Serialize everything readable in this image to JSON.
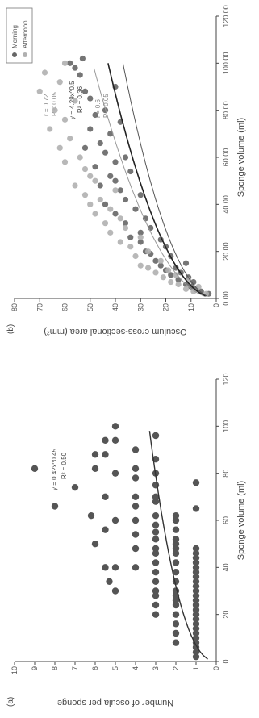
{
  "chart_data": [
    {
      "type": "scatter",
      "panel_label": "(a)",
      "xlabel": "Sponge volume (ml)",
      "ylabel": "Number of oscula per sponge",
      "xlim": [
        0,
        120
      ],
      "ylim": [
        0,
        10
      ],
      "x_ticks": [
        "0",
        "20",
        "40",
        "60",
        "80",
        "100",
        "120"
      ],
      "y_ticks": [
        "0",
        "1",
        "2",
        "3",
        "4",
        "5",
        "6",
        "7",
        "8",
        "9",
        "10"
      ],
      "grid": false,
      "colors": {
        "points": "#555555",
        "fit": "#333333"
      },
      "fit": {
        "equation": "y = 0.42x^0.45",
        "r2": "R² = 0.50",
        "a": 0.42,
        "b": 0.45,
        "x_range": [
          1,
          98
        ]
      },
      "series": [
        {
          "points": [
            [
              2,
              1
            ],
            [
              4,
              1
            ],
            [
              6,
              1
            ],
            [
              8,
              1
            ],
            [
              10,
              1
            ],
            [
              12,
              1
            ],
            [
              14,
              1
            ],
            [
              16,
              1
            ],
            [
              18,
              1
            ],
            [
              20,
              1
            ],
            [
              22,
              1
            ],
            [
              24,
              1
            ],
            [
              26,
              1
            ],
            [
              28,
              1
            ],
            [
              30,
              1
            ],
            [
              32,
              1
            ],
            [
              34,
              1
            ],
            [
              36,
              1
            ],
            [
              38,
              1
            ],
            [
              40,
              1
            ],
            [
              42,
              1
            ],
            [
              44,
              1
            ],
            [
              46,
              1
            ],
            [
              48,
              1
            ],
            [
              65,
              1
            ],
            [
              76,
              1
            ],
            [
              8,
              2
            ],
            [
              12,
              2
            ],
            [
              16,
              2
            ],
            [
              20,
              2
            ],
            [
              24,
              2
            ],
            [
              26,
              2
            ],
            [
              28,
              2
            ],
            [
              30,
              2
            ],
            [
              34,
              2
            ],
            [
              38,
              2
            ],
            [
              42,
              2
            ],
            [
              46,
              2
            ],
            [
              48,
              2
            ],
            [
              50,
              2
            ],
            [
              52,
              2
            ],
            [
              56,
              2
            ],
            [
              60,
              2
            ],
            [
              62,
              2
            ],
            [
              20,
              3
            ],
            [
              24,
              3
            ],
            [
              28,
              3
            ],
            [
              30,
              3
            ],
            [
              34,
              3
            ],
            [
              38,
              3
            ],
            [
              42,
              3
            ],
            [
              46,
              3
            ],
            [
              48,
              3
            ],
            [
              52,
              3
            ],
            [
              55,
              3
            ],
            [
              58,
              3
            ],
            [
              62,
              3
            ],
            [
              68,
              3
            ],
            [
              70,
              3
            ],
            [
              75,
              3
            ],
            [
              80,
              3
            ],
            [
              86,
              3
            ],
            [
              96,
              3
            ],
            [
              40,
              4
            ],
            [
              48,
              4
            ],
            [
              54,
              4
            ],
            [
              60,
              4
            ],
            [
              66,
              4
            ],
            [
              70,
              4
            ],
            [
              78,
              4
            ],
            [
              82,
              4
            ],
            [
              90,
              4
            ],
            [
              30,
              5
            ],
            [
              40,
              5
            ],
            [
              60,
              5
            ],
            [
              80,
              5
            ],
            [
              94,
              5
            ],
            [
              100,
              5
            ],
            [
              40,
              5.5
            ],
            [
              56,
              5.5
            ],
            [
              70,
              5.5
            ],
            [
              88,
              5.5
            ],
            [
              94,
              5.5
            ],
            [
              50,
              6
            ],
            [
              82,
              6
            ],
            [
              88,
              6
            ],
            [
              34,
              5.3
            ],
            [
              62,
              6.2
            ],
            [
              74,
              7
            ],
            [
              66,
              8
            ],
            [
              82,
              9
            ]
          ]
        }
      ]
    },
    {
      "type": "scatter",
      "panel_label": "(b)",
      "xlabel": "Sponge volume (ml)",
      "ylabel": "Osculum cross-sectional area (mm²)",
      "xlim": [
        0,
        120
      ],
      "ylim": [
        0,
        80
      ],
      "x_ticks": [
        "0.00",
        "20.00",
        "40.00",
        "60.00",
        "80.00",
        "100.00",
        "120.00"
      ],
      "y_ticks": [
        "0",
        "10",
        "20",
        "30",
        "40",
        "50",
        "60",
        "70",
        "80"
      ],
      "grid": false,
      "legend": {
        "position": "top-right",
        "entries": [
          "Morning",
          "Afternoon"
        ]
      },
      "colors": {
        "morning": "#666666",
        "afternoon": "#b0b0b0",
        "fit_main": "#222222",
        "fit_morning": "#555555",
        "fit_afternoon": "#999999"
      },
      "annotations": {
        "upper": [
          "r = 0.72",
          "P < 0.05"
        ],
        "fit": [
          "y = 4.29x^0.5",
          "R² = 0.36"
        ],
        "lower": [
          "r = 0.6",
          "P < 0.05"
        ]
      },
      "fits": [
        {
          "name": "combined",
          "a": 4.29,
          "b": 0.5,
          "x_range": [
            1,
            100
          ]
        },
        {
          "name": "morning",
          "a": 3.7,
          "b": 0.5,
          "x_range": [
            1,
            100
          ]
        },
        {
          "name": "afternoon",
          "a": 4.9,
          "b": 0.5,
          "x_range": [
            1,
            98
          ]
        }
      ],
      "series": [
        {
          "name": "Morning",
          "points": [
            [
              2,
              3
            ],
            [
              3,
              6
            ],
            [
              4,
              8
            ],
            [
              5,
              10
            ],
            [
              6,
              12
            ],
            [
              7,
              9
            ],
            [
              8,
              15
            ],
            [
              9,
              11
            ],
            [
              10,
              18
            ],
            [
              11,
              14
            ],
            [
              12,
              20
            ],
            [
              13,
              16
            ],
            [
              14,
              22
            ],
            [
              15,
              12
            ],
            [
              16,
              24
            ],
            [
              18,
              18
            ],
            [
              19,
              26
            ],
            [
              20,
              28
            ],
            [
              22,
              20
            ],
            [
              24,
              30
            ],
            [
              25,
              22
            ],
            [
              26,
              34
            ],
            [
              28,
              30
            ],
            [
              30,
              26
            ],
            [
              32,
              36
            ],
            [
              34,
              28
            ],
            [
              36,
              40
            ],
            [
              38,
              32
            ],
            [
              40,
              44
            ],
            [
              42,
              36
            ],
            [
              44,
              30
            ],
            [
              46,
              38
            ],
            [
              48,
              46
            ],
            [
              50,
              40
            ],
            [
              52,
              42
            ],
            [
              54,
              34
            ],
            [
              56,
              48
            ],
            [
              58,
              40
            ],
            [
              60,
              36
            ],
            [
              62,
              44
            ],
            [
              64,
              52
            ],
            [
              66,
              46
            ],
            [
              70,
              42
            ],
            [
              72,
              50
            ],
            [
              75,
              38
            ],
            [
              78,
              48
            ],
            [
              80,
              44
            ],
            [
              85,
              50
            ],
            [
              88,
              52
            ],
            [
              90,
              40
            ],
            [
              95,
              54
            ],
            [
              98,
              56
            ],
            [
              100,
              58
            ],
            [
              102,
              53
            ]
          ]
        },
        {
          "name": "Afternoon",
          "points": [
            [
              2,
              4
            ],
            [
              3,
              9
            ],
            [
              4,
              12
            ],
            [
              5,
              7
            ],
            [
              6,
              15
            ],
            [
              7,
              18
            ],
            [
              8,
              11
            ],
            [
              9,
              21
            ],
            [
              10,
              16
            ],
            [
              11,
              24
            ],
            [
              12,
              19
            ],
            [
              13,
              27
            ],
            [
              14,
              30
            ],
            [
              16,
              22
            ],
            [
              18,
              32
            ],
            [
              20,
              27
            ],
            [
              22,
              34
            ],
            [
              24,
              38
            ],
            [
              26,
              30
            ],
            [
              28,
              42
            ],
            [
              30,
              36
            ],
            [
              32,
              44
            ],
            [
              34,
              38
            ],
            [
              36,
              48
            ],
            [
              38,
              42
            ],
            [
              40,
              50
            ],
            [
              42,
              46
            ],
            [
              44,
              52
            ],
            [
              46,
              40
            ],
            [
              48,
              56
            ],
            [
              50,
              48
            ],
            [
              52,
              50
            ],
            [
              55,
              52
            ],
            [
              58,
              60
            ],
            [
              60,
              54
            ],
            [
              64,
              62
            ],
            [
              68,
              58
            ],
            [
              72,
              66
            ],
            [
              76,
              60
            ],
            [
              80,
              64
            ],
            [
              84,
              56
            ],
            [
              88,
              70
            ],
            [
              92,
              62
            ],
            [
              96,
              68
            ],
            [
              100,
              60
            ]
          ]
        }
      ]
    }
  ]
}
